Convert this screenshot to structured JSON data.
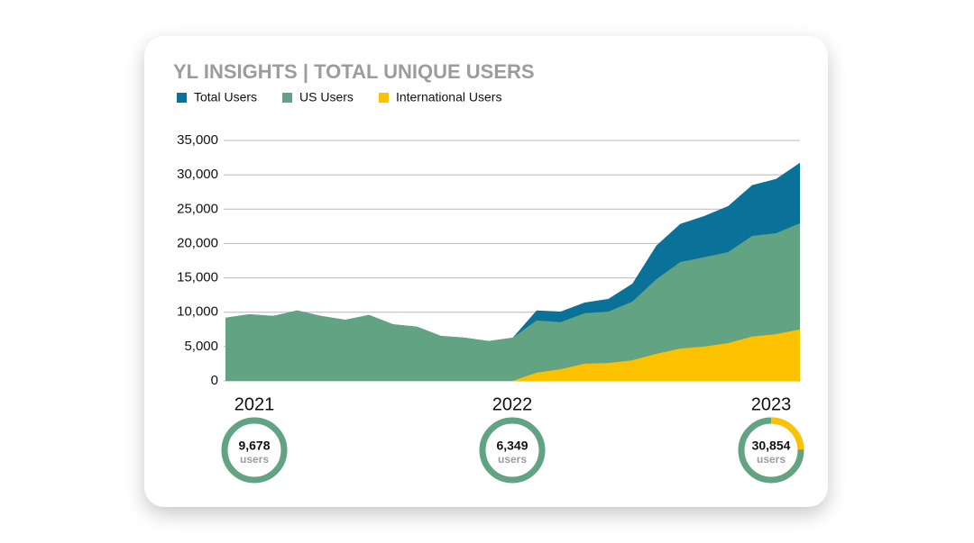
{
  "chart_data": {
    "type": "area",
    "title": "YL INSIGHTS | TOTAL UNIQUE USERS",
    "categories": [
      null,
      null,
      null,
      null,
      null,
      null,
      null,
      null,
      null,
      null,
      null,
      null,
      null,
      null,
      null,
      null,
      null,
      null,
      null,
      null,
      null,
      null,
      null,
      null,
      null
    ],
    "series": [
      {
        "name": "Total Users",
        "color": "#0a7199",
        "values": [
          9200,
          9700,
          9450,
          10250,
          9450,
          8900,
          9600,
          8250,
          7900,
          6550,
          6300,
          5800,
          6300,
          10250,
          10100,
          11400,
          11950,
          14150,
          19700,
          22850,
          24000,
          25450,
          28500,
          29400,
          31750
        ]
      },
      {
        "name": "US Users",
        "color": "#62a383",
        "values": [
          9200,
          9700,
          9450,
          10250,
          9450,
          8900,
          9600,
          8250,
          7900,
          6550,
          6300,
          5800,
          6300,
          8800,
          8550,
          9850,
          10100,
          11550,
          14800,
          17300,
          18000,
          18750,
          21100,
          21500,
          22950
        ]
      },
      {
        "name": "International Users",
        "color": "#fcc200",
        "values": [
          null,
          null,
          null,
          null,
          null,
          null,
          null,
          null,
          null,
          null,
          null,
          null,
          0,
          1200,
          1700,
          2500,
          2600,
          3000,
          3950,
          4700,
          5000,
          5500,
          6450,
          6800,
          7500
        ]
      }
    ],
    "ylim": [
      0,
      35000
    ],
    "yticks": [
      0,
      {
        "value": 5000,
        "label": "5,000"
      },
      {
        "value": 10000,
        "label": "10,000"
      },
      {
        "value": 15000,
        "label": "15,000"
      },
      {
        "value": 20000,
        "label": "20,000"
      },
      {
        "value": 25000,
        "label": "25,000"
      },
      {
        "value": 30000,
        "label": "30,000"
      },
      {
        "value": 35000,
        "label": "35,000"
      }
    ],
    "grid": true,
    "legend": "top-left"
  },
  "summaries": [
    {
      "year": "2021",
      "total": 9678,
      "total_label": "9,678",
      "unit": "users",
      "international": 0
    },
    {
      "year": "2022",
      "total": 6349,
      "total_label": "6,349",
      "unit": "users",
      "international": 0
    },
    {
      "year": "2023",
      "total": 30854,
      "total_label": "30,854",
      "unit": "users",
      "international": 7600
    }
  ]
}
